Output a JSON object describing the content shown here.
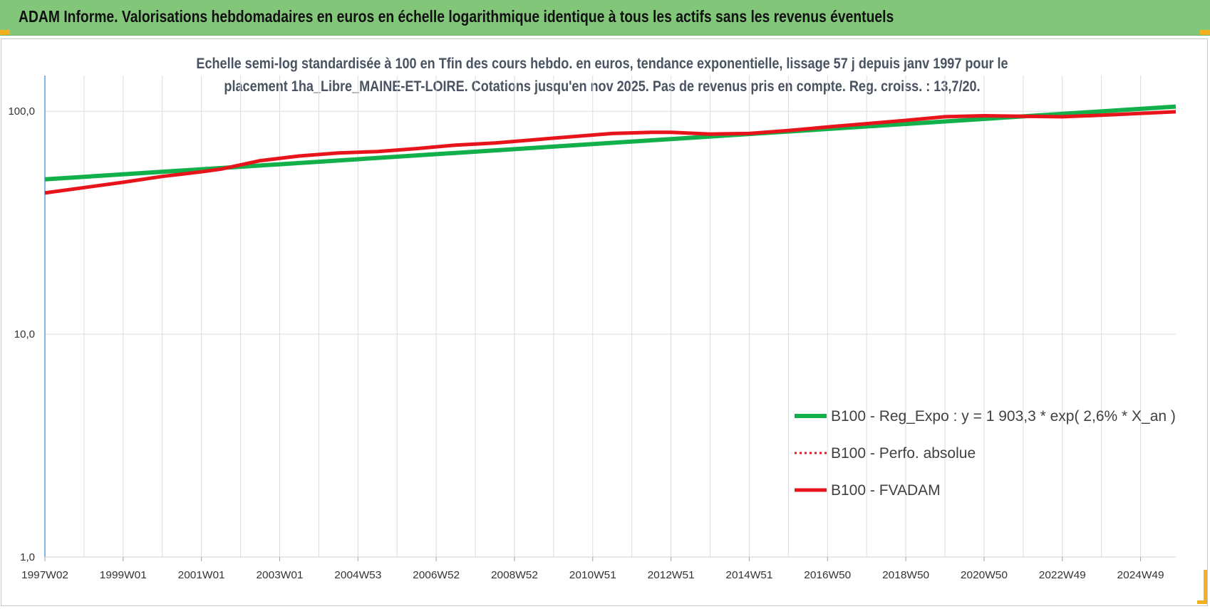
{
  "banner": {
    "title": "ADAM Informe. Valorisations hebdomadaires en euros en échelle logarithmique identique à tous les actifs sans les revenus éventuels"
  },
  "colors": {
    "banner": "#82c67a",
    "regression": "#12b04b",
    "fvadam": "#e8141c",
    "perfo": "#e8141c",
    "grid": "#dcdcdc",
    "axis": "#5b9bd5",
    "corner": "#f2b01e"
  },
  "chart_data": {
    "type": "line",
    "title_lines": [
      "Echelle semi-log standardisée à 100 en Tfin des cours hebdo. en euros, tendance exponentielle, lissage 57 j depuis janv 1997 pour le",
      "placement 1ha_Libre_MAINE-ET-LOIRE. Cotations jusqu'en nov 2025. Pas de revenus pris en compte. Reg. croiss. : 13,7/20."
    ],
    "y_scale": "log",
    "ylim": [
      1,
      200
    ],
    "y_ticks": [
      1,
      10,
      100
    ],
    "y_tick_labels": [
      "1,0",
      "10,0",
      "100,0"
    ],
    "xlim": [
      1997.0,
      2025.9
    ],
    "x_tick_positions": [
      1997.0,
      1999.0,
      2001.0,
      2003.0,
      2005.0,
      2007.0,
      2009.0,
      2011.0,
      2013.0,
      2015.0,
      2017.0,
      2019.0,
      2021.0,
      2023.0,
      2025.0
    ],
    "x_tick_labels": [
      "1997W02",
      "1999W01",
      "2001W01",
      "2003W01",
      "2004W53",
      "2006W52",
      "2008W52",
      "2010W51",
      "2012W51",
      "2014W51",
      "2016W50",
      "2018W50",
      "2020W50",
      "2022W49",
      "2024W49"
    ],
    "grid": true,
    "legend_position": "right",
    "series": [
      {
        "name": "B100 - Reg_Expo : y = 1 903,3 * exp( 2,6% *  X_an )",
        "style": "solid-green",
        "x": [
          1997.0,
          2025.9
        ],
        "y": [
          49.5,
          105.0
        ]
      },
      {
        "name": "B100 - Perfo. absolue",
        "style": "dotted-red",
        "x": [],
        "y": []
      },
      {
        "name": "B100 - FVADAM",
        "style": "solid-red",
        "x": [
          1997.0,
          1999.0,
          2000.0,
          2001.0,
          2001.5,
          2002.5,
          2003.5,
          2004.5,
          2005.5,
          2006.5,
          2007.5,
          2008.5,
          2009.5,
          2010.5,
          2011.5,
          2012.5,
          2013.0,
          2014.0,
          2015.0,
          2016.0,
          2017.0,
          2018.0,
          2019.0,
          2020.0,
          2021.0,
          2022.0,
          2023.0,
          2024.0,
          2025.9
        ],
        "y": [
          43.0,
          48.0,
          51.0,
          53.5,
          55.0,
          60.0,
          63.0,
          65.0,
          66.0,
          68.0,
          70.5,
          72.0,
          74.5,
          77.0,
          79.5,
          80.5,
          80.5,
          79.0,
          79.5,
          82.0,
          85.0,
          88.0,
          91.0,
          94.5,
          95.5,
          95.0,
          94.5,
          96.0,
          99.5
        ]
      }
    ]
  }
}
